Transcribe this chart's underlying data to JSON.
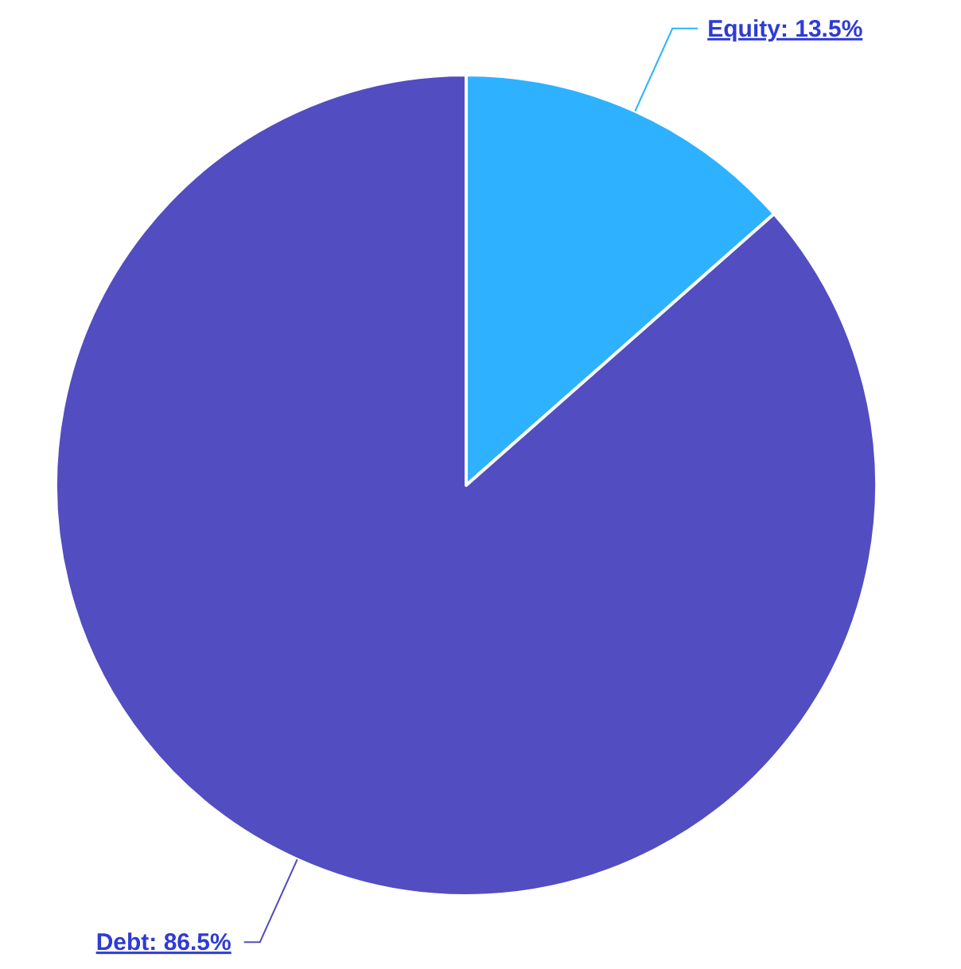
{
  "chart_data": {
    "type": "pie",
    "categories": [
      "Equity",
      "Debt"
    ],
    "values": [
      13.5,
      86.5
    ],
    "colors": [
      "#2eb2ff",
      "#524dc0"
    ],
    "value_labels": [
      "13.5%",
      "86.5%"
    ]
  }
}
